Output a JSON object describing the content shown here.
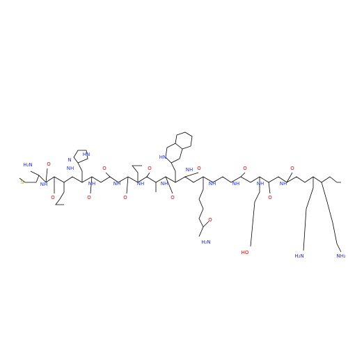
{
  "molecule": {
    "atoms": [
      {
        "label": "H₂N"
      },
      {
        "label": "O"
      },
      {
        "label": "S"
      },
      {
        "label": "NH"
      },
      {
        "label": "O"
      },
      {
        "label": "NH"
      },
      {
        "label": "N"
      },
      {
        "label": "HN"
      },
      {
        "label": "O"
      },
      {
        "label": "NH"
      },
      {
        "label": "O"
      },
      {
        "label": "NH"
      },
      {
        "label": "O"
      },
      {
        "label": "NH"
      },
      {
        "label": "O"
      },
      {
        "label": "NH"
      },
      {
        "label": "HN"
      },
      {
        "label": "O"
      },
      {
        "label": "NH"
      },
      {
        "label": "O"
      },
      {
        "label": "NH"
      },
      {
        "label": "H₂N"
      },
      {
        "label": "O"
      },
      {
        "label": "NH"
      },
      {
        "label": "O"
      },
      {
        "label": "NH"
      },
      {
        "label": "HO"
      },
      {
        "label": "O"
      },
      {
        "label": "NH"
      },
      {
        "label": "O"
      },
      {
        "label": "H₂N"
      },
      {
        "label": "NH₂"
      }
    ]
  }
}
